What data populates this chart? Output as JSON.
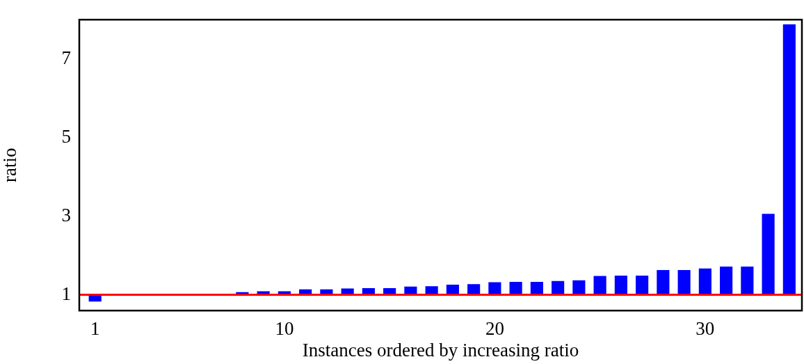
{
  "chart_data": {
    "type": "bar",
    "xlabel": "Instances ordered by increasing ratio",
    "ylabel": "ratio",
    "x": [
      1,
      2,
      3,
      4,
      5,
      6,
      7,
      8,
      9,
      10,
      11,
      12,
      13,
      14,
      15,
      16,
      17,
      18,
      19,
      20,
      21,
      22,
      23,
      24,
      25,
      26,
      27,
      28,
      29,
      30,
      31,
      32,
      33,
      34
    ],
    "base": [
      1,
      null,
      null,
      null,
      null,
      null,
      null,
      1,
      1,
      1,
      1,
      1,
      1,
      1,
      1,
      1,
      1,
      1,
      1,
      1,
      1,
      1,
      1,
      1,
      1,
      1,
      1,
      1,
      1,
      1,
      1,
      1,
      1,
      1
    ],
    "values": [
      -0.17,
      null,
      null,
      null,
      null,
      null,
      null,
      0.07,
      0.09,
      0.09,
      0.14,
      0.14,
      0.16,
      0.17,
      0.17,
      0.21,
      0.22,
      0.26,
      0.27,
      0.32,
      0.33,
      0.33,
      0.35,
      0.37,
      0.48,
      0.49,
      0.49,
      0.63,
      0.63,
      0.67,
      0.72,
      0.72,
      2.06,
      6.88
    ],
    "color": "#0000ff",
    "xlim": [
      0.25,
      34.6
    ],
    "xticks": [
      1,
      10,
      20,
      30
    ],
    "ylim": [
      0.6,
      8
    ],
    "yticks": [
      1,
      3,
      5,
      7
    ],
    "ref_lines": [
      {
        "axis": "y",
        "value": 1,
        "color": "#ff0000"
      }
    ],
    "grid": false,
    "legend": false
  }
}
